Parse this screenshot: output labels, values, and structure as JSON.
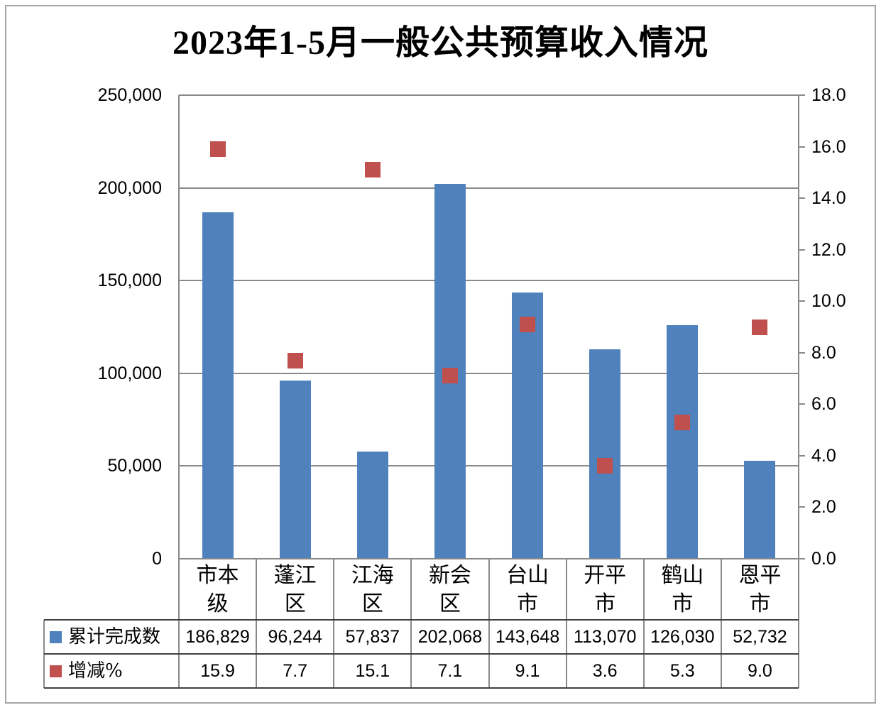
{
  "colors": {
    "bar": "#4F81BD",
    "marker": "#C0504D",
    "grid": "#898989",
    "table_line": "#404040",
    "outer_border": "#A6A6A6"
  },
  "chart_data": {
    "type": "combo",
    "title": "2023年1-5月一般公共预算收入情况",
    "categories": [
      "市本级",
      "蓬江区",
      "江海区",
      "新会区",
      "台山市",
      "开平市",
      "鹤山市",
      "恩平市"
    ],
    "series": [
      {
        "name": "累计完成数",
        "type": "bar",
        "axis": "left",
        "color": "#4F81BD",
        "values": [
          186829,
          96244,
          57837,
          202068,
          143648,
          113070,
          126030,
          52732
        ],
        "labels": [
          "186,829",
          "96,244",
          "57,837",
          "202,068",
          "143,648",
          "113,070",
          "126,030",
          "52,732"
        ]
      },
      {
        "name": "增减%",
        "type": "scatter",
        "marker": "square",
        "axis": "right",
        "color": "#C0504D",
        "values": [
          15.9,
          7.7,
          15.1,
          7.1,
          9.1,
          3.6,
          5.3,
          9.0
        ],
        "labels": [
          "15.9",
          "7.7",
          "15.1",
          "7.1",
          "9.1",
          "3.6",
          "5.3",
          "9.0"
        ]
      }
    ],
    "left_axis": {
      "min": 0,
      "max": 250000,
      "step": 50000,
      "tick_labels": [
        "0",
        "50,000",
        "100,000",
        "150,000",
        "200,000",
        "250,000"
      ]
    },
    "right_axis": {
      "min": 0,
      "max": 18,
      "step": 2,
      "tick_labels": [
        "0.0",
        "2.0",
        "4.0",
        "6.0",
        "8.0",
        "10.0",
        "12.0",
        "14.0",
        "16.0",
        "18.0"
      ]
    },
    "grid": true,
    "legend_position": "data-table-left"
  }
}
